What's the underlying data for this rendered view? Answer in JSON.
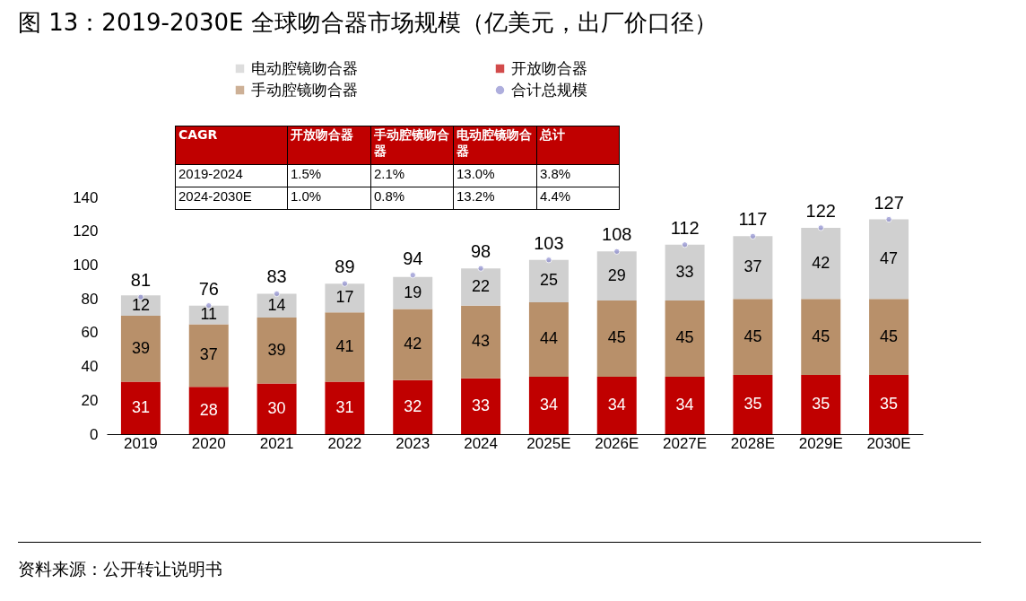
{
  "chart_data": {
    "type": "bar",
    "title": "图 13：2019-2030E 全球吻合器市场规模（亿美元，出厂价口径）",
    "categories": [
      "2019",
      "2020",
      "2021",
      "2022",
      "2023",
      "2024",
      "2025E",
      "2026E",
      "2027E",
      "2028E",
      "2029E",
      "2030E"
    ],
    "series": [
      {
        "name": "开放吻合器",
        "color": "#c00000",
        "values": [
          31,
          28,
          30,
          31,
          32,
          33,
          34,
          34,
          34,
          35,
          35,
          35
        ]
      },
      {
        "name": "手动腔镜吻合器",
        "color": "#b8906a",
        "values": [
          39,
          37,
          39,
          41,
          42,
          43,
          44,
          45,
          45,
          45,
          45,
          45
        ]
      },
      {
        "name": "电动腔镜吻合器",
        "color": "#d0d0d0",
        "values": [
          12,
          11,
          14,
          17,
          19,
          22,
          25,
          29,
          33,
          37,
          42,
          47
        ]
      },
      {
        "name": "合计总规模",
        "type": "scatter",
        "color": "#8c8ccf",
        "values": [
          81,
          76,
          83,
          89,
          94,
          98,
          103,
          108,
          112,
          117,
          122,
          127
        ]
      }
    ],
    "stacked": true,
    "data_labels": true,
    "marker": "circle",
    "legend": "top",
    "grid": false,
    "ylim": [
      0,
      140
    ],
    "yticks": [
      0,
      20,
      40,
      60,
      80,
      100,
      120,
      140
    ],
    "annotations": [
      "CAGR",
      "开放吻合器",
      "手动腔镜吻合器",
      "电动腔镜吻合器",
      "总计",
      "2019-2024",
      "1.5%",
      "2.1%",
      "13.0%",
      "3.8%",
      "2024-2030E",
      "1.0%",
      "0.8%",
      "13.2%",
      "4.4%",
      "资料来源：公开转让说明书"
    ]
  }
}
